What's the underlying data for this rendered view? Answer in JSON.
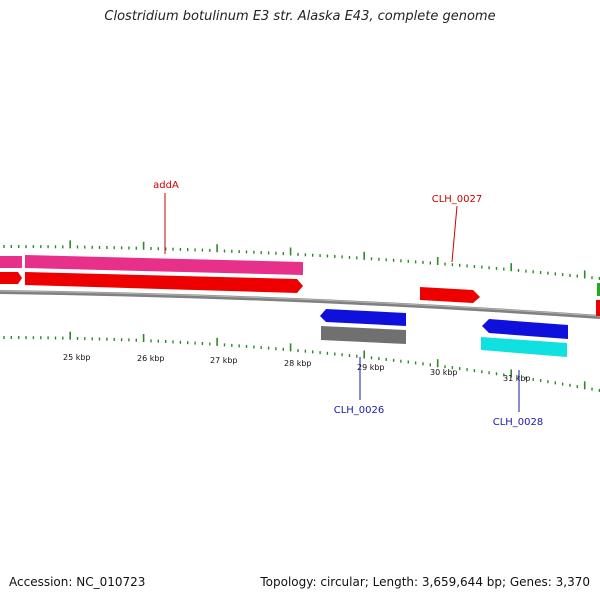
{
  "title": "Clostridium botulinum E3 str. Alaska E43, complete genome",
  "footer": {
    "accession": "Accession: NC_010723",
    "summary": "Topology: circular; Length: 3,659,644 bp; Genes: 3,370"
  },
  "map": {
    "colors": {
      "backbone": "#808080",
      "tick": "#2a8a2a",
      "forward_label": "#cc0000",
      "reverse_label": "#1a1aaa",
      "pink_feature": "#e6308a",
      "red_feature": "#ee0000",
      "blue_feature": "#1010dd",
      "gray_feature": "#707070",
      "cyan_feature": "#11e0e0",
      "green_feature": "#22aa22"
    },
    "scale_labels": [
      "25 kbp",
      "26 kbp",
      "27 kbp",
      "28 kbp",
      "29 kbp",
      "30 kbp",
      "31 kbp"
    ],
    "gene_labels": [
      {
        "text": "addA",
        "strand": "forward"
      },
      {
        "text": "CLH_0027",
        "strand": "forward"
      },
      {
        "text": "CLH_0026",
        "strand": "reverse"
      },
      {
        "text": "CLH_0028",
        "strand": "reverse"
      }
    ]
  }
}
